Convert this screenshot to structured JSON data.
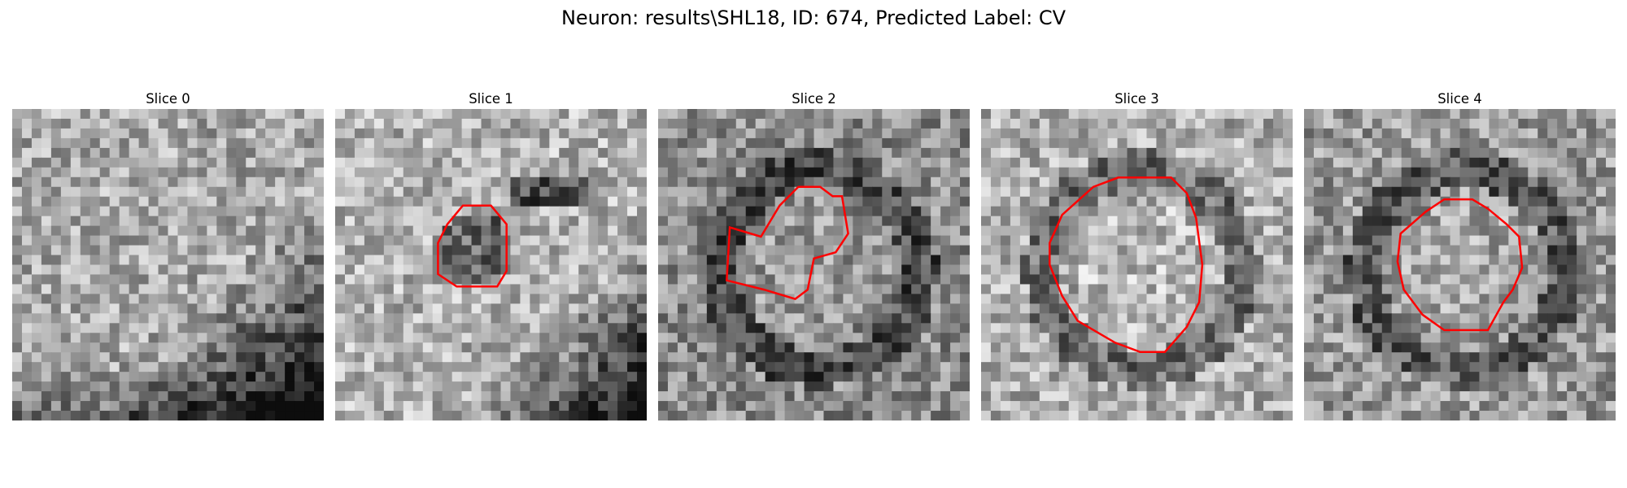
{
  "suptitle": "Neuron: results\\SHL18, ID: 674, Predicted Label: CV",
  "contour_color": "#ff0000",
  "panels": [
    {
      "title": "Slice 0",
      "seed": 11,
      "base": 0.66,
      "dark_ring": false,
      "has_contour": false
    },
    {
      "title": "Slice 1",
      "seed": 23,
      "base": 0.7,
      "dark_ring": false,
      "has_contour": true
    },
    {
      "title": "Slice 2",
      "seed": 37,
      "base": 0.55,
      "dark_ring": true,
      "has_contour": true
    },
    {
      "title": "Slice 3",
      "seed": 41,
      "base": 0.68,
      "dark_ring": true,
      "has_contour": true
    },
    {
      "title": "Slice 4",
      "seed": 53,
      "base": 0.6,
      "dark_ring": true,
      "has_contour": true
    }
  ]
}
